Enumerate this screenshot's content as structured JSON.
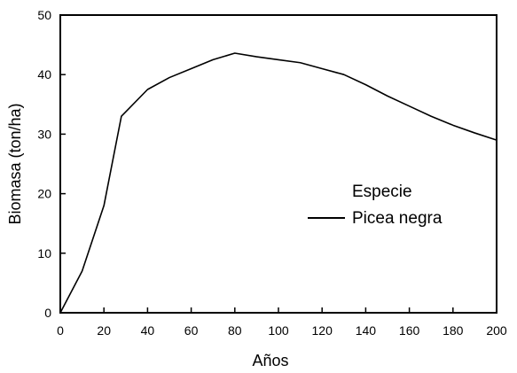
{
  "chart_data": {
    "type": "line",
    "title": "",
    "xlabel": "Años",
    "ylabel": "Biomasa (ton/ha)",
    "xlim": [
      0,
      200
    ],
    "ylim": [
      0,
      50
    ],
    "x_ticks": [
      0,
      20,
      40,
      60,
      80,
      100,
      120,
      140,
      160,
      180,
      200
    ],
    "y_ticks": [
      0,
      10,
      20,
      30,
      40,
      50
    ],
    "grid": false,
    "legend": {
      "title": "Especie",
      "placement": "center-right"
    },
    "series": [
      {
        "name": "Picea negra",
        "color": "#000000",
        "x": [
          0,
          10,
          20,
          28,
          40,
          50,
          60,
          70,
          80,
          90,
          100,
          110,
          120,
          130,
          140,
          150,
          160,
          170,
          180,
          190,
          200
        ],
        "y": [
          0,
          7,
          18,
          33,
          37.5,
          39.5,
          41,
          42.5,
          43.6,
          43,
          42.5,
          42,
          41,
          40,
          38.3,
          36.4,
          34.7,
          33,
          31.5,
          30.2,
          29
        ]
      }
    ]
  }
}
